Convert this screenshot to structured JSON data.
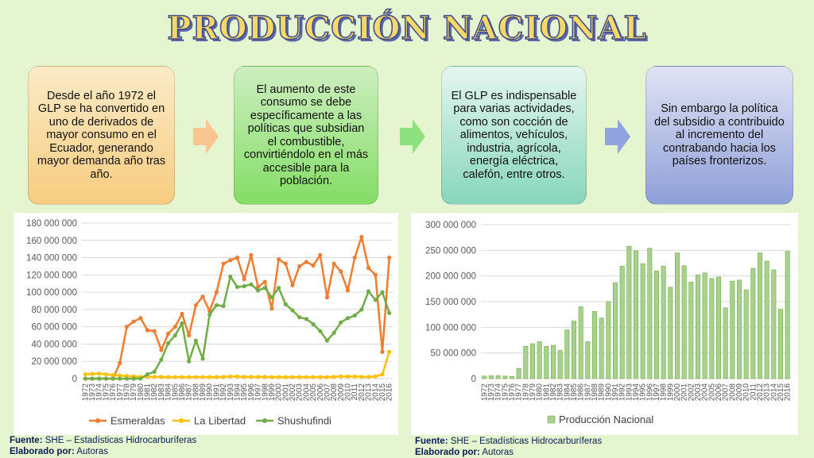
{
  "title": "PRODUCCIÓN NACIONAL",
  "boxes": [
    {
      "text": "Desde el año 1972 el GLP se ha convertido en uno de derivados de mayor consumo en el Ecuador, generando mayor demanda año tras año.",
      "color": "#f7cc80"
    },
    {
      "text": "El aumento de este consumo se debe específicamente a las políticas que subsidian el combustible, convirtiéndolo en el más accesible para la población.",
      "color": "#84dd66"
    },
    {
      "text": "El GLP es indispensable para varias actividades, como son cocción de alimentos, vehículos, industria, agrícola, energía eléctrica, calefón, entre otros.",
      "color": "#86d6bb"
    },
    {
      "text": "Sin embargo la política del subsidio a contribuido al incremento del contrabando hacia los países fronterizos.",
      "color": "#8f9fd8"
    }
  ],
  "arrows": [
    {
      "icon": "right-arrow-icon",
      "color": "#f8c68e"
    },
    {
      "icon": "right-arrow-icon",
      "color": "#8fe07f"
    },
    {
      "icon": "right-arrow-icon",
      "color": "#8fa3de"
    }
  ],
  "sources": [
    {
      "fuente_label": "Fuente:",
      "fuente": "SHE – Estadísticas Hidrocarburíferas",
      "elaborado_label": "Elaborado por:",
      "elaborado": "Autoras"
    },
    {
      "fuente_label": "Fuente:",
      "fuente": "SHE – Estadísticas Hidrocarburíferas",
      "elaborado_label": "Elaborado por:",
      "elaborado": "Autoras"
    }
  ],
  "chart_data": [
    {
      "type": "line",
      "x": [
        "1972",
        "1973",
        "1974",
        "1975",
        "1976",
        "1977",
        "1978",
        "1979",
        "1980",
        "1981",
        "1982",
        "1983",
        "1984",
        "1985",
        "1986",
        "1987",
        "1988",
        "1989",
        "1990",
        "1991",
        "1992",
        "1993",
        "1994",
        "1995",
        "1996",
        "1997",
        "1998",
        "1999",
        "2000",
        "2001",
        "2002",
        "2003",
        "2004",
        "2005",
        "2006",
        "2007",
        "2008",
        "2009",
        "2010",
        "2011",
        "2012",
        "2013",
        "2014",
        "2015",
        "2016"
      ],
      "ylim": [
        0,
        180000000
      ],
      "yticks": [
        "0",
        "20 000 000",
        "40 000 000",
        "60 000 000",
        "80 000 000",
        "100 000 000",
        "120 000 000",
        "140 000 000",
        "160 000 000",
        "180 000 000"
      ],
      "legend_position": "bottom",
      "series": [
        {
          "name": "Esmeraldas",
          "color": "#ed7d31",
          "values": [
            0,
            0,
            0,
            0,
            0,
            18000000,
            60000000,
            66000000,
            70000000,
            56000000,
            55000000,
            33000000,
            52000000,
            60000000,
            75000000,
            50000000,
            85000000,
            95000000,
            78000000,
            100000000,
            133000000,
            137000000,
            140000000,
            115000000,
            143000000,
            106000000,
            112000000,
            81000000,
            138000000,
            133000000,
            108000000,
            130000000,
            135000000,
            131000000,
            143000000,
            94000000,
            133000000,
            124000000,
            102000000,
            140000000,
            164000000,
            128000000,
            120000000,
            31000000,
            140000000
          ]
        },
        {
          "name": "La Libertad",
          "color": "#ffc000",
          "values": [
            5000000,
            5500000,
            5800000,
            5000000,
            4000000,
            3500000,
            3000000,
            2500000,
            2000000,
            2000000,
            2000000,
            2000000,
            1800000,
            1800000,
            1800000,
            1800000,
            1800000,
            1800000,
            1800000,
            1800000,
            2000000,
            2500000,
            2500000,
            2000000,
            2000000,
            2000000,
            2000000,
            1800000,
            1800000,
            1800000,
            1800000,
            1800000,
            1800000,
            1800000,
            1800000,
            1800000,
            2000000,
            2500000,
            2500000,
            2500000,
            2000000,
            2000000,
            2500000,
            5000000,
            31000000
          ]
        },
        {
          "name": "Shushufindi",
          "color": "#70ad47",
          "values": [
            0,
            0,
            0,
            0,
            0,
            0,
            0,
            0,
            0,
            5000000,
            8000000,
            22000000,
            41000000,
            50000000,
            64000000,
            20000000,
            44000000,
            23000000,
            74000000,
            85000000,
            84000000,
            118000000,
            106000000,
            107000000,
            109000000,
            102000000,
            105000000,
            94000000,
            105000000,
            86000000,
            79000000,
            71000000,
            69000000,
            63000000,
            55000000,
            44000000,
            53000000,
            65000000,
            70000000,
            73000000,
            80000000,
            101000000,
            91000000,
            100000000,
            76000000
          ]
        }
      ]
    },
    {
      "type": "bar",
      "categories": [
        "1972",
        "1973",
        "1974",
        "1975",
        "1976",
        "1977",
        "1978",
        "1979",
        "1980",
        "1981",
        "1982",
        "1983",
        "1984",
        "1985",
        "1986",
        "1987",
        "1988",
        "1989",
        "1990",
        "1991",
        "1992",
        "1993",
        "1994",
        "1995",
        "1996",
        "1997",
        "1998",
        "1999",
        "2000",
        "2001",
        "2002",
        "2003",
        "2004",
        "2005",
        "2006",
        "2007",
        "2008",
        "2009",
        "2010",
        "2011",
        "2012",
        "2013",
        "2014",
        "2015",
        "2016"
      ],
      "ylim": [
        0,
        300000000
      ],
      "yticks": [
        "0",
        "50 000 000",
        "100 000 000",
        "150 000 000",
        "200 000 000",
        "250 000 000",
        "300 000 000"
      ],
      "legend_position": "bottom",
      "series": [
        {
          "name": "Producción Nacional",
          "color": "#a9d18e",
          "edge": "#70ad47",
          "values": [
            5000000,
            5500000,
            5800000,
            5000000,
            4000000,
            20000000,
            63000000,
            68000000,
            72000000,
            63000000,
            65000000,
            55000000,
            95000000,
            112000000,
            140000000,
            72000000,
            131000000,
            118000000,
            150000000,
            187000000,
            219000000,
            258000000,
            249000000,
            224000000,
            254000000,
            210000000,
            219000000,
            178000000,
            245000000,
            220000000,
            188000000,
            202000000,
            206000000,
            195000000,
            198000000,
            138000000,
            190000000,
            192000000,
            173000000,
            215000000,
            245000000,
            229000000,
            212000000,
            135000000,
            248000000
          ]
        }
      ]
    }
  ]
}
